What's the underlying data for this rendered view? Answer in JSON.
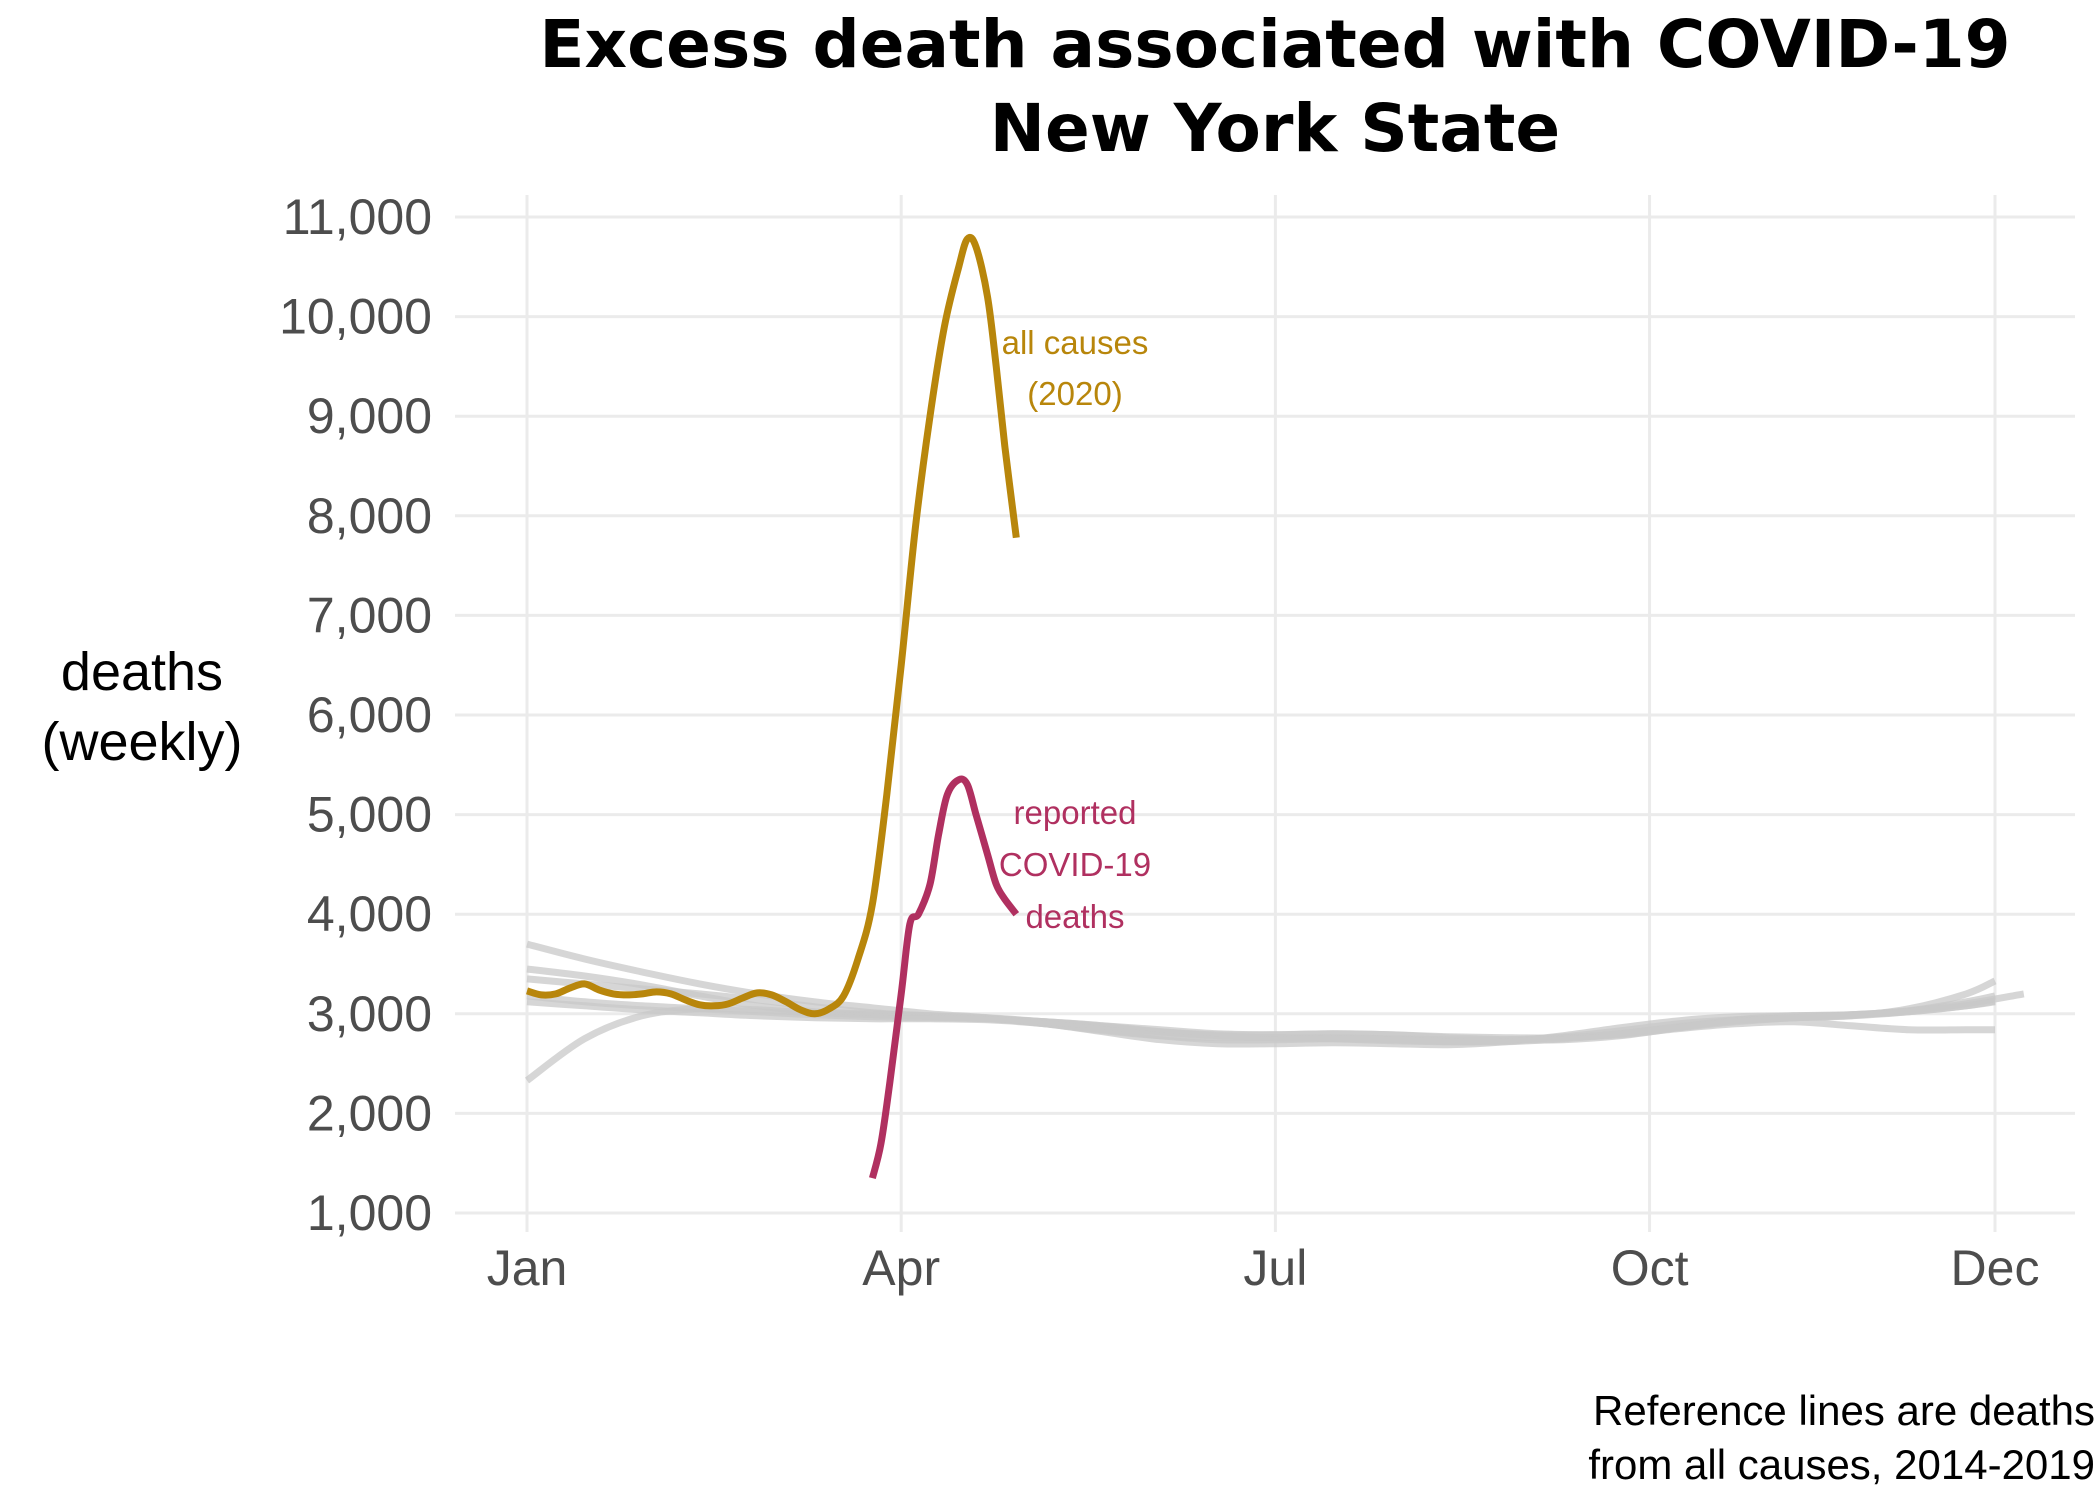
{
  "chart_data": {
    "type": "line",
    "title_line1": "Excess death associated with COVID-19",
    "title_line2": "New York State",
    "ylabel_line1": "deaths",
    "ylabel_line2": "(weekly)",
    "caption_line1": "Reference lines are deaths",
    "caption_line2": "from all causes, 2014-2019",
    "ylim": [
      1000,
      11000
    ],
    "y_ticks": [
      "1,000",
      "2,000",
      "3,000",
      "4,000",
      "5,000",
      "6,000",
      "7,000",
      "8,000",
      "9,000",
      "10,000",
      "11,000"
    ],
    "y_tick_values": [
      1000,
      2000,
      3000,
      4000,
      5000,
      6000,
      7000,
      8000,
      9000,
      10000,
      11000
    ],
    "x_ticks": [
      "Jan",
      "Apr",
      "Jul",
      "Oct",
      "Dec"
    ],
    "x_tick_weeks": [
      1,
      14,
      27,
      40,
      52
    ],
    "xlim_weeks": [
      -1,
      53.5
    ],
    "grid": true,
    "colors": {
      "all_causes_2020": "#B8860B",
      "covid": "#B03060",
      "reference": "#c8c8c8"
    },
    "annotations": {
      "all_causes": [
        "all causes",
        "(2020)"
      ],
      "covid": [
        "reported",
        "COVID-19",
        "deaths"
      ]
    },
    "series": [
      {
        "name": "all causes (2020)",
        "role": "all_causes_2020",
        "x": [
          1,
          1.5,
          2,
          2.5,
          3,
          3.5,
          4,
          4.5,
          5,
          5.5,
          6,
          6.5,
          7,
          7.5,
          8,
          8.5,
          9,
          9.5,
          10,
          10.5,
          11,
          11.5,
          12,
          12.5,
          13,
          13.5,
          14,
          14.5,
          15,
          15.5,
          16,
          16.3,
          16.6,
          17,
          17.3,
          17.6,
          18
        ],
        "y": [
          3230,
          3190,
          3200,
          3260,
          3300,
          3240,
          3200,
          3190,
          3200,
          3220,
          3200,
          3140,
          3090,
          3080,
          3100,
          3160,
          3210,
          3190,
          3120,
          3040,
          3000,
          3050,
          3180,
          3550,
          4100,
          5200,
          6500,
          7900,
          9000,
          9900,
          10500,
          10780,
          10700,
          10200,
          9500,
          8700,
          7780
        ]
      },
      {
        "name": "reported COVID-19 deaths",
        "role": "covid",
        "x": [
          13,
          13.3,
          13.6,
          14,
          14.3,
          14.6,
          15,
          15.3,
          15.6,
          16,
          16.3,
          16.6,
          17,
          17.3,
          17.6,
          18
        ],
        "y": [
          1350,
          1700,
          2300,
          3200,
          3900,
          4000,
          4300,
          4800,
          5200,
          5350,
          5300,
          5000,
          4600,
          4300,
          4150,
          4000
        ]
      },
      {
        "role": "reference",
        "x": [
          1,
          3,
          5,
          7,
          9,
          11,
          13,
          15,
          17,
          19,
          21,
          23,
          25,
          27,
          29,
          31,
          33,
          35,
          37,
          39,
          41,
          43,
          45,
          47,
          49,
          51,
          52
        ],
        "y": [
          3700,
          3550,
          3420,
          3300,
          3200,
          3120,
          3060,
          3000,
          2960,
          2900,
          2830,
          2780,
          2760,
          2760,
          2750,
          2730,
          2720,
          2730,
          2770,
          2830,
          2900,
          2940,
          2960,
          2980,
          3050,
          3200,
          3330
        ]
      },
      {
        "role": "reference",
        "x": [
          1,
          3,
          5,
          7,
          9,
          11,
          13,
          15,
          17,
          19,
          21,
          23,
          25,
          27,
          29,
          31,
          33,
          35,
          37,
          39,
          41,
          43,
          45,
          47,
          49,
          51,
          52
        ],
        "y": [
          2330,
          2750,
          2980,
          3050,
          3040,
          3010,
          2990,
          2970,
          2950,
          2920,
          2880,
          2840,
          2800,
          2790,
          2800,
          2790,
          2770,
          2760,
          2760,
          2790,
          2850,
          2900,
          2920,
          2880,
          2840,
          2840,
          2840
        ]
      },
      {
        "role": "reference",
        "x": [
          1,
          3,
          5,
          7,
          9,
          11,
          13,
          15,
          17,
          19,
          21,
          23,
          25,
          27,
          29,
          31,
          33,
          35,
          37,
          39,
          41,
          43,
          45,
          47,
          49,
          51,
          53
        ],
        "y": [
          3450,
          3380,
          3290,
          3180,
          3080,
          3020,
          3000,
          2980,
          2950,
          2900,
          2820,
          2740,
          2700,
          2700,
          2710,
          2700,
          2690,
          2720,
          2780,
          2860,
          2930,
          2970,
          2980,
          2990,
          3030,
          3100,
          3200
        ]
      },
      {
        "role": "reference",
        "x": [
          1,
          3,
          5,
          7,
          9,
          11,
          13,
          15,
          17,
          19,
          21,
          23,
          25,
          27,
          29,
          31,
          33,
          35,
          37,
          39,
          41,
          43,
          45,
          47,
          49,
          51,
          52
        ],
        "y": [
          3350,
          3300,
          3250,
          3200,
          3140,
          3070,
          3010,
          2980,
          2960,
          2920,
          2870,
          2820,
          2790,
          2790,
          2800,
          2790,
          2760,
          2740,
          2740,
          2780,
          2860,
          2940,
          2980,
          2990,
          3020,
          3080,
          3130
        ]
      },
      {
        "role": "reference",
        "x": [
          1,
          3,
          5,
          7,
          9,
          11,
          13,
          15,
          17,
          19,
          21,
          23,
          25,
          27,
          29,
          31,
          33,
          35,
          37,
          39,
          41,
          43,
          45,
          47,
          49,
          51,
          52
        ],
        "y": [
          3180,
          3120,
          3080,
          3050,
          3020,
          2990,
          2970,
          2960,
          2950,
          2920,
          2880,
          2820,
          2780,
          2760,
          2760,
          2750,
          2740,
          2740,
          2760,
          2800,
          2870,
          2930,
          2960,
          2990,
          3030,
          3120,
          3180
        ]
      },
      {
        "role": "reference",
        "x": [
          1,
          3,
          5,
          7,
          9,
          11,
          13,
          15,
          17,
          19,
          21,
          23,
          25,
          27,
          29,
          31,
          33,
          35,
          37,
          39,
          41,
          43,
          45,
          47,
          49,
          51,
          52
        ],
        "y": [
          3120,
          3080,
          3040,
          3010,
          2980,
          2960,
          2950,
          2950,
          2940,
          2900,
          2840,
          2780,
          2740,
          2740,
          2750,
          2740,
          2720,
          2720,
          2750,
          2800,
          2860,
          2920,
          2960,
          2980,
          3020,
          3080,
          3120
        ]
      }
    ]
  }
}
